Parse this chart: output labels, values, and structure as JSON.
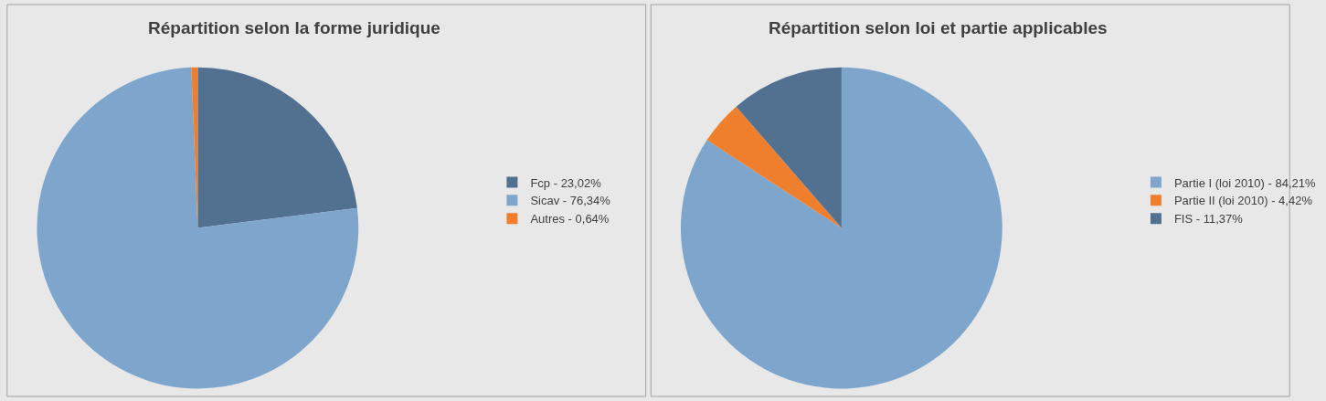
{
  "chart_data": [
    {
      "type": "pie",
      "title": "Répartition selon la forme juridique",
      "categories": [
        "Fcp - 23,02%",
        "Sicav - 76,34%",
        "Autres - 0,64%"
      ],
      "values": [
        23.02,
        76.34,
        0.64
      ],
      "colors": [
        "#52708f",
        "#7ea6cc",
        "#f07f2d"
      ],
      "legend": "right"
    },
    {
      "type": "pie",
      "title": "Répartition selon loi et partie applicables",
      "categories": [
        "Partie I (loi 2010) - 84,21%",
        "Partie II (loi 2010) - 4,42%",
        "FIS - 11,37%"
      ],
      "values": [
        84.21,
        4.42,
        11.37
      ],
      "colors": [
        "#7ea6cc",
        "#f07f2d",
        "#52708f"
      ],
      "legend": "right"
    }
  ]
}
